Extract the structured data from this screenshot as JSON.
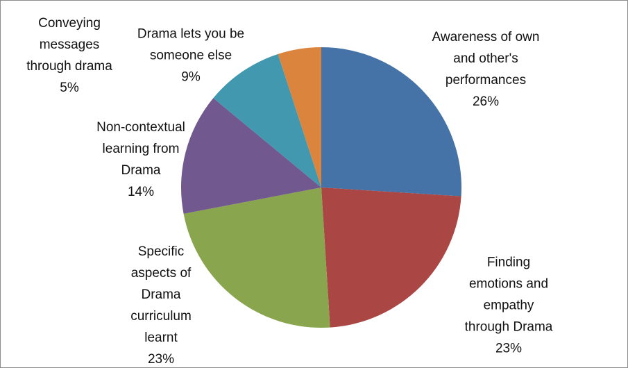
{
  "chart_data": {
    "type": "pie",
    "categories": [
      "Awareness of own and other's performances",
      "Finding emotions and empathy through Drama",
      "Specific aspects of Drama curriculum learnt",
      "Non-contextual learning from Drama",
      "Drama lets you be someone else",
      "Conveying messages through drama"
    ],
    "values": [
      26,
      23,
      23,
      14,
      9,
      5
    ],
    "value_labels": [
      "26%",
      "23%",
      "23%",
      "14%",
      "9%",
      "5%"
    ],
    "colors": [
      "#4572a7",
      "#aa4643",
      "#89a54e",
      "#71588f",
      "#4198af",
      "#db843d"
    ]
  }
}
